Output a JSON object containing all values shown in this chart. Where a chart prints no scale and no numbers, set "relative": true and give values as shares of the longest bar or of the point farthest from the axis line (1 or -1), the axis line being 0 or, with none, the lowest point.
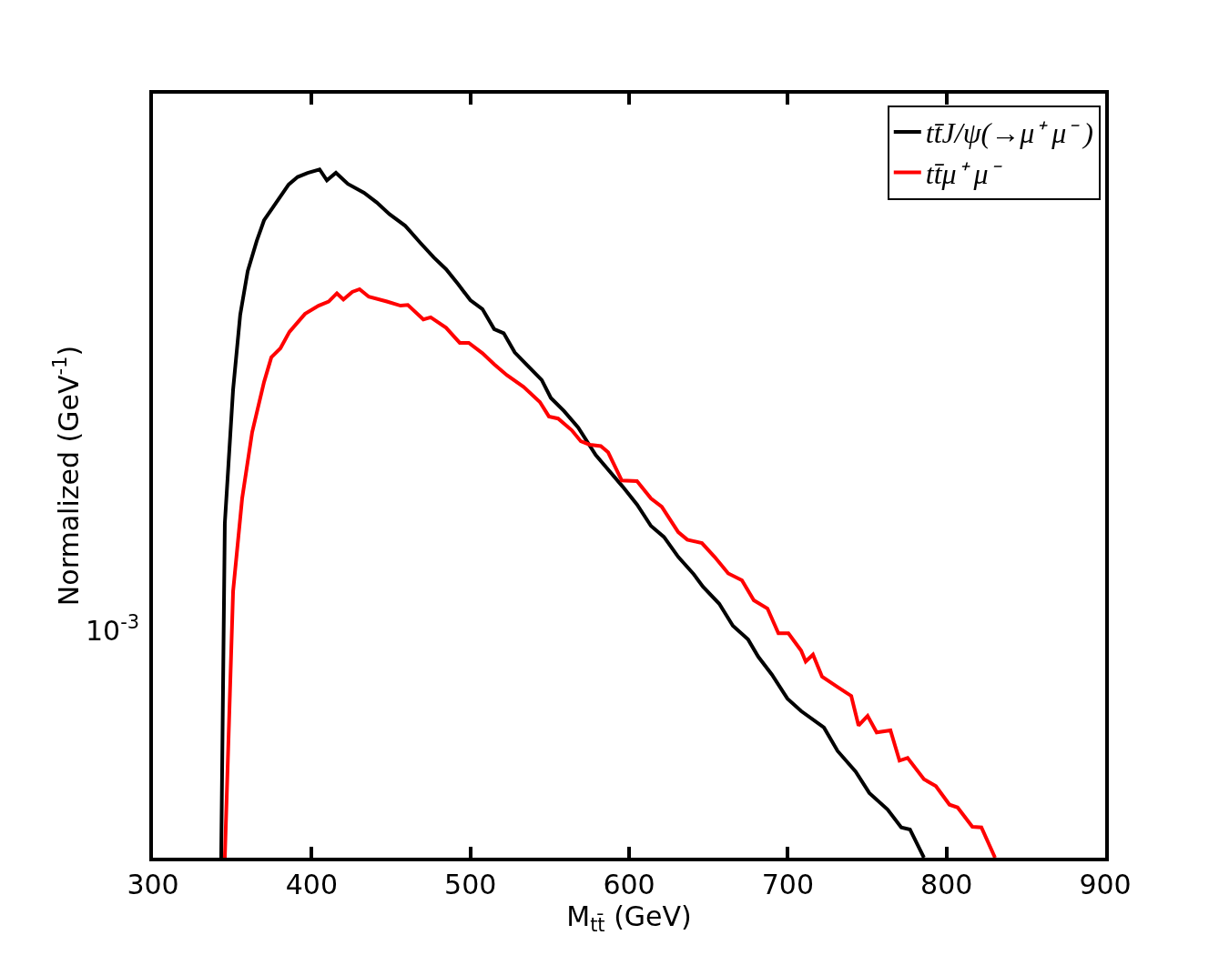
{
  "chart_data": {
    "type": "line",
    "relative": true,
    "xlabel": "M$_{tt̄}$ (GeV)",
    "ylabel": "Normalized (GeV$^{-1}$)",
    "legend": "top right",
    "marker": "none",
    "line_style": "solid",
    "xlim": [
      300,
      900
    ],
    "xticks": [
      300,
      400,
      500,
      600,
      700,
      800,
      900
    ],
    "annotations": [
      "10$^{-3}$"
    ],
    "series": [
      {
        "name": "tt̄J/ψ(→μ⁺ μ⁻ )",
        "color": "#000000",
        "x": [
          343,
          345.3,
          350.5,
          355,
          359.7,
          365.4,
          370,
          378.6,
          385.5,
          391.2,
          397.5,
          405,
          409.6,
          415.3,
          422.8,
          433,
          441,
          449,
          459,
          468.6,
          477,
          484.7,
          492,
          500,
          507.6,
          515,
          521,
          528,
          536,
          545,
          550.7,
          559,
          567.9,
          579,
          596,
          605,
          613.8,
          622,
          631,
          640.7,
          646.5,
          656.8,
          665.4,
          675,
          681.4,
          690,
          699.8,
          708.4,
          722.8,
          731.4,
          742.8,
          751.4,
          762.9,
          771.5,
          777,
          785.8
        ],
        "values": [
          0,
          0.486,
          0.68,
          0.789,
          0.852,
          0.896,
          0.926,
          0.955,
          0.978,
          0.989,
          0.995,
          1,
          0.984,
          0.995,
          0.979,
          0.966,
          0.952,
          0.935,
          0.918,
          0.893,
          0.872,
          0.855,
          0.834,
          0.81,
          0.797,
          0.768,
          0.762,
          0.734,
          0.715,
          0.694,
          0.668,
          0.649,
          0.625,
          0.585,
          0.539,
          0.513,
          0.482,
          0.466,
          0.437,
          0.412,
          0.394,
          0.369,
          0.337,
          0.317,
          0.292,
          0.266,
          0.231,
          0.213,
          0.189,
          0.155,
          0.125,
          0.094,
          0.07,
          0.044,
          0.041,
          0
        ]
      },
      {
        "name": "tt̄μ⁺ μ⁻",
        "color": "#ff0000",
        "x": [
          345.3,
          350.5,
          356.2,
          362.5,
          370,
          374.6,
          380.3,
          386,
          395.8,
          404.4,
          410.7,
          415.9,
          420,
          425.6,
          430.2,
          436,
          447.4,
          456,
          460.6,
          470.4,
          475,
          484.7,
          493.3,
          499,
          507.6,
          515,
          523,
          533.5,
          543.8,
          549.5,
          555.3,
          563.9,
          569.6,
          575.3,
          582.2,
          586.8,
          595.4,
          605,
          613.8,
          620.6,
          631,
          636.7,
          645.9,
          653.9,
          662.5,
          671.1,
          678.6,
          687.2,
          694.1,
          700.4,
          708.4,
          711.3,
          715.9,
          721.6,
          731.4,
          740,
          744.6,
          750.3,
          756,
          764.7,
          770.4,
          775.5,
          785.8,
          793.3,
          801.9,
          807,
          816.3,
          822,
          830.6
        ],
        "values": [
          0,
          0.387,
          0.522,
          0.618,
          0.691,
          0.727,
          0.74,
          0.764,
          0.79,
          0.802,
          0.808,
          0.82,
          0.811,
          0.822,
          0.826,
          0.815,
          0.808,
          0.802,
          0.803,
          0.782,
          0.785,
          0.77,
          0.748,
          0.748,
          0.733,
          0.717,
          0.701,
          0.684,
          0.662,
          0.641,
          0.638,
          0.621,
          0.605,
          0.6,
          0.598,
          0.589,
          0.548,
          0.547,
          0.522,
          0.51,
          0.473,
          0.462,
          0.457,
          0.437,
          0.413,
          0.403,
          0.374,
          0.362,
          0.326,
          0.326,
          0.301,
          0.285,
          0.295,
          0.263,
          0.248,
          0.235,
          0.192,
          0.206,
          0.182,
          0.185,
          0.141,
          0.145,
          0.114,
          0.104,
          0.077,
          0.073,
          0.045,
          0.044,
          0
        ]
      }
    ]
  }
}
